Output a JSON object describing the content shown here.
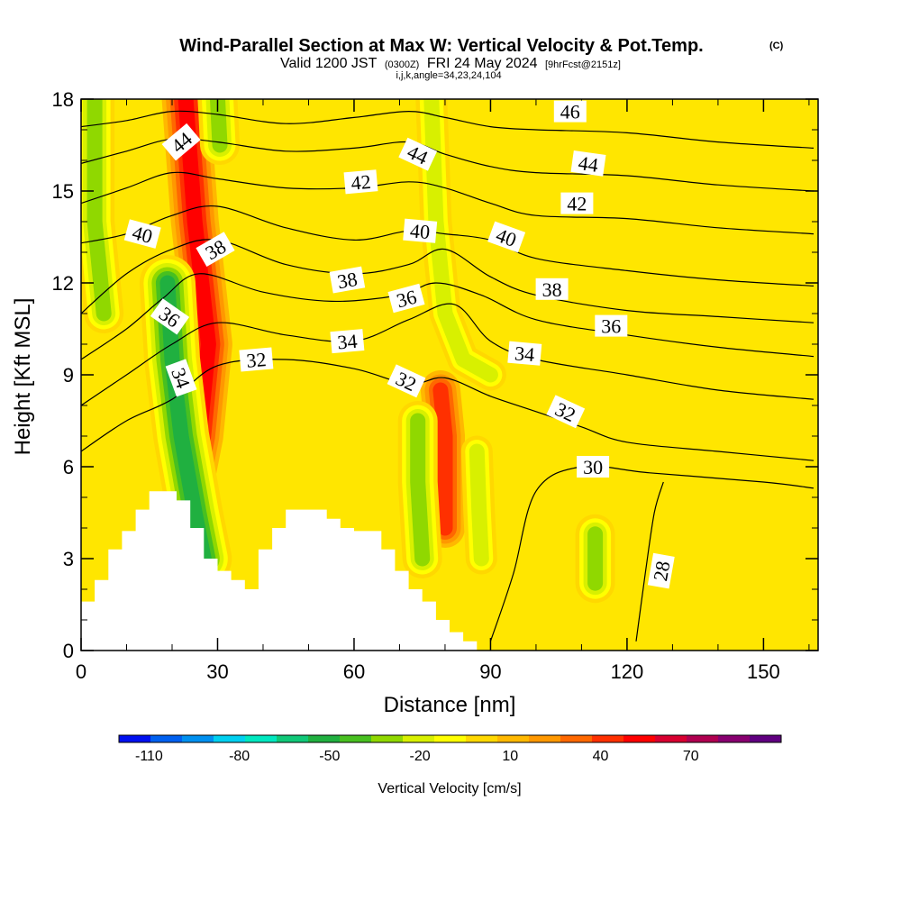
{
  "header": {
    "title": "Wind-Parallel Section at Max W: Vertical Velocity & Pot.Temp.",
    "title_mark": "(C)",
    "sub_a": "Valid 1200 JST",
    "sub_b": "(0300Z)",
    "sub_c": "FRI 24 May 2024",
    "sub_d": "[9hrFcst@2151z]",
    "sub_line3": "i,j,k,angle=34,23,24,104"
  },
  "chart_data": {
    "type": "heatmap",
    "xlabel": "Distance [nm]",
    "ylabel": "Height [Kft MSL]",
    "xlim": [
      0,
      162
    ],
    "ylim": [
      0,
      18
    ],
    "xticks": [
      0,
      30,
      60,
      90,
      120,
      150
    ],
    "yticks": [
      0,
      3,
      6,
      9,
      12,
      15,
      18
    ],
    "colorbar": {
      "label": "Vertical Velocity [cm/s]",
      "min": -120,
      "max": 100,
      "step": 10,
      "tick_values": [
        -110,
        -80,
        -50,
        -20,
        10,
        40,
        70
      ],
      "tick_labels": [
        "-110",
        "-80",
        "-50",
        "-20",
        "10",
        "40",
        "70"
      ],
      "colors": [
        "#0010f0",
        "#0060f0",
        "#0090f0",
        "#00d0f0",
        "#00e8c0",
        "#10c878",
        "#20b040",
        "#48c020",
        "#90d800",
        "#d8f000",
        "#ffff00",
        "#ffd800",
        "#ffb800",
        "#ff9800",
        "#ff6800",
        "#ff3000",
        "#ff0000",
        "#d80030",
        "#b00050",
        "#880070",
        "#600080"
      ]
    },
    "updraft_axes": [
      {
        "kind": "updraft",
        "path": [
          [
            23,
            18
          ],
          [
            25,
            14
          ],
          [
            28,
            10
          ],
          [
            26,
            7
          ],
          [
            24,
            5.5
          ]
        ],
        "peak_cm_s": 55
      },
      {
        "kind": "updraft",
        "path": [
          [
            79,
            8.5
          ],
          [
            80,
            7
          ],
          [
            80,
            5.5
          ],
          [
            80,
            4
          ]
        ],
        "peak_cm_s": 45
      }
    ],
    "downdraft_axes": [
      {
        "kind": "downdraft",
        "path": [
          [
            3,
            18
          ],
          [
            3,
            14
          ],
          [
            5,
            11
          ]
        ],
        "peak_cm_s": -40
      },
      {
        "kind": "downdraft",
        "path": [
          [
            19,
            12
          ],
          [
            20,
            9.5
          ],
          [
            22,
            7
          ],
          [
            25,
            4.5
          ],
          [
            27,
            3
          ]
        ],
        "peak_cm_s": -60
      },
      {
        "kind": "downdraft",
        "path": [
          [
            30,
            18
          ],
          [
            30.5,
            16.5
          ]
        ],
        "peak_cm_s": -40
      },
      {
        "kind": "downdraft",
        "path": [
          [
            77,
            18
          ],
          [
            78,
            14
          ],
          [
            80,
            11
          ],
          [
            84,
            9.5
          ],
          [
            90,
            9
          ]
        ],
        "peak_cm_s": -35
      },
      {
        "kind": "downdraft",
        "path": [
          [
            74,
            7.5
          ],
          [
            74,
            5.5
          ],
          [
            75,
            3
          ]
        ],
        "peak_cm_s": -45
      },
      {
        "kind": "downdraft",
        "path": [
          [
            87,
            6.5
          ],
          [
            87.5,
            4.5
          ],
          [
            88,
            3
          ]
        ],
        "peak_cm_s": -35
      },
      {
        "kind": "downdraft",
        "path": [
          [
            113,
            3.8
          ],
          [
            113,
            2.2
          ]
        ],
        "peak_cm_s": -40
      }
    ],
    "terrain": [
      [
        0,
        1.6
      ],
      [
        3,
        1.6
      ],
      [
        3,
        2.3
      ],
      [
        6,
        2.3
      ],
      [
        6,
        3.3
      ],
      [
        9,
        3.3
      ],
      [
        9,
        3.9
      ],
      [
        12,
        3.9
      ],
      [
        12,
        4.6
      ],
      [
        15,
        4.6
      ],
      [
        15,
        5.2
      ],
      [
        21,
        5.2
      ],
      [
        21,
        4.9
      ],
      [
        24,
        4.9
      ],
      [
        24,
        4.0
      ],
      [
        27,
        4.0
      ],
      [
        27,
        3.0
      ],
      [
        30,
        3.0
      ],
      [
        30,
        2.6
      ],
      [
        33,
        2.6
      ],
      [
        33,
        2.3
      ],
      [
        36,
        2.3
      ],
      [
        36,
        2.0
      ],
      [
        39,
        2.0
      ],
      [
        39,
        3.3
      ],
      [
        42,
        3.3
      ],
      [
        42,
        4.0
      ],
      [
        45,
        4.0
      ],
      [
        45,
        4.6
      ],
      [
        54,
        4.6
      ],
      [
        54,
        4.3
      ],
      [
        57,
        4.3
      ],
      [
        57,
        4.0
      ],
      [
        60,
        4.0
      ],
      [
        60,
        3.9
      ],
      [
        66,
        3.9
      ],
      [
        66,
        3.3
      ],
      [
        69,
        3.3
      ],
      [
        69,
        2.6
      ],
      [
        72,
        2.6
      ],
      [
        72,
        2.0
      ],
      [
        75,
        2.0
      ],
      [
        75,
        1.6
      ],
      [
        78,
        1.6
      ],
      [
        78,
        1.0
      ],
      [
        81,
        1.0
      ],
      [
        81,
        0.6
      ],
      [
        84,
        0.6
      ],
      [
        84,
        0.3
      ],
      [
        87,
        0.3
      ],
      [
        87,
        0
      ],
      [
        0,
        0
      ]
    ],
    "theta_isentropes": [
      {
        "label": "28",
        "points": [
          [
            122,
            0.3
          ],
          [
            124,
            2.5
          ],
          [
            126,
            4.5
          ],
          [
            128,
            5.5
          ]
        ]
      },
      {
        "label": "30",
        "points": [
          [
            90,
            0.3
          ],
          [
            95,
            2.5
          ],
          [
            100,
            5.2
          ],
          [
            110,
            6
          ],
          [
            125,
            5.8
          ],
          [
            150,
            5.5
          ],
          [
            161,
            5.3
          ]
        ]
      },
      {
        "label": "32",
        "points": [
          [
            0,
            6.5
          ],
          [
            10,
            7.5
          ],
          [
            20,
            8.2
          ],
          [
            30,
            9.3
          ],
          [
            45,
            9.5
          ],
          [
            60,
            9.2
          ],
          [
            72,
            8.7
          ],
          [
            80,
            8.9
          ],
          [
            90,
            8.3
          ],
          [
            100,
            7.8
          ],
          [
            110,
            7.3
          ],
          [
            120,
            6.8
          ],
          [
            140,
            6.5
          ],
          [
            161,
            6.2
          ]
        ]
      },
      {
        "label": "34",
        "points": [
          [
            0,
            8
          ],
          [
            10,
            9
          ],
          [
            20,
            10
          ],
          [
            30,
            10.7
          ],
          [
            45,
            10.3
          ],
          [
            60,
            10.1
          ],
          [
            72,
            10.8
          ],
          [
            82,
            11.3
          ],
          [
            90,
            10.1
          ],
          [
            100,
            9.5
          ],
          [
            120,
            9.0
          ],
          [
            140,
            8.5
          ],
          [
            161,
            8.2
          ]
        ]
      },
      {
        "label": "36",
        "points": [
          [
            0,
            9.5
          ],
          [
            10,
            10.5
          ],
          [
            18,
            11.5
          ],
          [
            26,
            12.3
          ],
          [
            40,
            11.7
          ],
          [
            55,
            11.4
          ],
          [
            70,
            11.6
          ],
          [
            78,
            12.0
          ],
          [
            88,
            11.6
          ],
          [
            100,
            10.8
          ],
          [
            120,
            10.3
          ],
          [
            140,
            9.9
          ],
          [
            161,
            9.6
          ]
        ]
      },
      {
        "label": "38",
        "points": [
          [
            0,
            11
          ],
          [
            10,
            12.3
          ],
          [
            20,
            13.1
          ],
          [
            30,
            13.4
          ],
          [
            45,
            12.6
          ],
          [
            60,
            12.3
          ],
          [
            72,
            12.6
          ],
          [
            80,
            13.1
          ],
          [
            90,
            12.2
          ],
          [
            100,
            11.6
          ],
          [
            120,
            11.1
          ],
          [
            140,
            10.9
          ],
          [
            161,
            10.7
          ]
        ]
      },
      {
        "label": "40",
        "points": [
          [
            0,
            13.3
          ],
          [
            10,
            13.6
          ],
          [
            20,
            14.2
          ],
          [
            30,
            14.5
          ],
          [
            45,
            13.8
          ],
          [
            60,
            13.4
          ],
          [
            72,
            13.7
          ],
          [
            80,
            13.6
          ],
          [
            90,
            13.4
          ],
          [
            100,
            12.8
          ],
          [
            120,
            12.4
          ],
          [
            140,
            12.1
          ],
          [
            161,
            11.9
          ]
        ]
      },
      {
        "label": "42",
        "points": [
          [
            0,
            14.6
          ],
          [
            10,
            15.1
          ],
          [
            20,
            15.6
          ],
          [
            30,
            15.4
          ],
          [
            45,
            15.1
          ],
          [
            60,
            15.1
          ],
          [
            72,
            15.3
          ],
          [
            80,
            15.1
          ],
          [
            90,
            14.6
          ],
          [
            100,
            14.2
          ],
          [
            120,
            14.1
          ],
          [
            140,
            13.8
          ],
          [
            161,
            13.6
          ]
        ]
      },
      {
        "label": "44",
        "points": [
          [
            0,
            15.9
          ],
          [
            10,
            16.3
          ],
          [
            20,
            16.7
          ],
          [
            30,
            16.6
          ],
          [
            45,
            16.3
          ],
          [
            60,
            16.4
          ],
          [
            72,
            16.6
          ],
          [
            80,
            16.2
          ],
          [
            90,
            15.8
          ],
          [
            100,
            15.6
          ],
          [
            120,
            15.5
          ],
          [
            140,
            15.2
          ],
          [
            161,
            15.0
          ]
        ]
      },
      {
        "label": "46",
        "points": [
          [
            0,
            17.1
          ],
          [
            10,
            17.3
          ],
          [
            20,
            17.6
          ],
          [
            30,
            17.5
          ],
          [
            45,
            17.2
          ],
          [
            60,
            17.4
          ],
          [
            72,
            17.6
          ],
          [
            80,
            17.4
          ],
          [
            90,
            17.1
          ],
          [
            100,
            17.0
          ],
          [
            120,
            16.9
          ],
          [
            140,
            16.6
          ],
          [
            161,
            16.4
          ]
        ]
      }
    ],
    "contour_labels": [
      {
        "text": "46",
        "x": 107.5,
        "y": 17.6,
        "angle": 0
      },
      {
        "text": "44",
        "x": 22,
        "y": 16.6,
        "angle": -40
      },
      {
        "text": "44",
        "x": 74,
        "y": 16.2,
        "angle": 25
      },
      {
        "text": "44",
        "x": 111.5,
        "y": 15.9,
        "angle": 8
      },
      {
        "text": "42",
        "x": 61.5,
        "y": 15.3,
        "angle": -5
      },
      {
        "text": "42",
        "x": 109,
        "y": 14.6,
        "angle": 0
      },
      {
        "text": "40",
        "x": 13.5,
        "y": 13.6,
        "angle": 15
      },
      {
        "text": "40",
        "x": 74.5,
        "y": 13.7,
        "angle": 5
      },
      {
        "text": "40",
        "x": 93.5,
        "y": 13.5,
        "angle": 20
      },
      {
        "text": "38",
        "x": 29.5,
        "y": 13.1,
        "angle": -30
      },
      {
        "text": "38",
        "x": 58.5,
        "y": 12.1,
        "angle": -10
      },
      {
        "text": "38",
        "x": 103.5,
        "y": 11.8,
        "angle": 0
      },
      {
        "text": "36",
        "x": 71.5,
        "y": 11.5,
        "angle": -15
      },
      {
        "text": "36",
        "x": 19.5,
        "y": 10.9,
        "angle": 35
      },
      {
        "text": "36",
        "x": 116.5,
        "y": 10.6,
        "angle": 0
      },
      {
        "text": "34",
        "x": 58.5,
        "y": 10.1,
        "angle": -5
      },
      {
        "text": "34",
        "x": 97.5,
        "y": 9.7,
        "angle": 5
      },
      {
        "text": "34",
        "x": 22,
        "y": 8.9,
        "angle": 70
      },
      {
        "text": "32",
        "x": 38.5,
        "y": 9.5,
        "angle": -5
      },
      {
        "text": "32",
        "x": 71.5,
        "y": 8.8,
        "angle": 25
      },
      {
        "text": "32",
        "x": 106.5,
        "y": 7.8,
        "angle": 25
      },
      {
        "text": "30",
        "x": 112.5,
        "y": 6.0,
        "angle": 0
      },
      {
        "text": "28",
        "x": 127.5,
        "y": 2.6,
        "angle": -80
      }
    ]
  }
}
